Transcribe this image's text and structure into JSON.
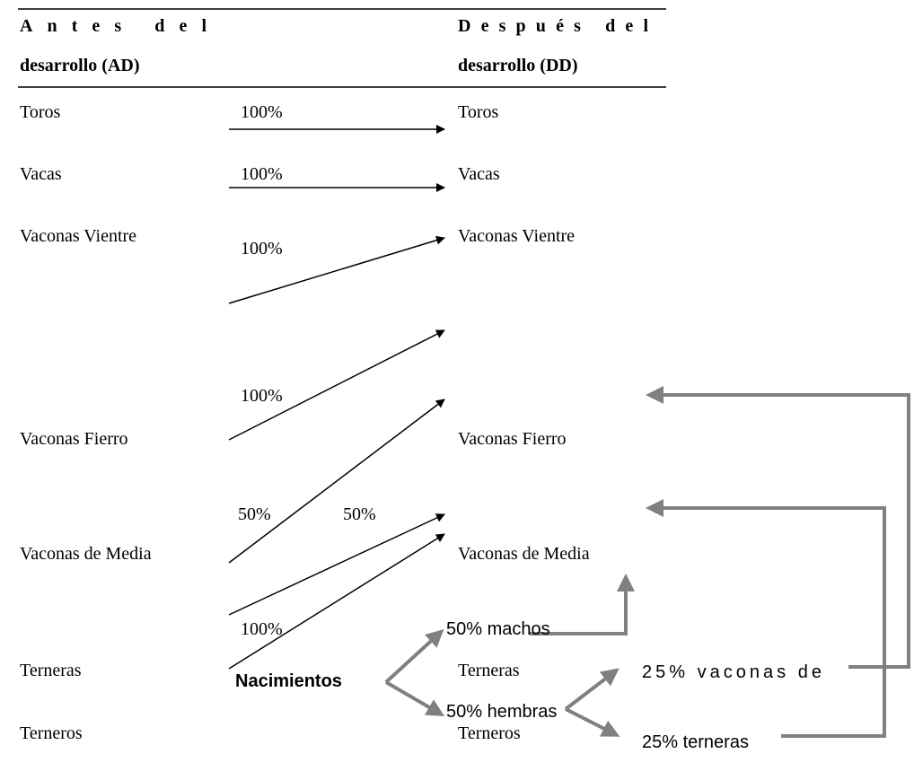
{
  "header": {
    "before_line1": "Antes del",
    "before_line2": "desarrollo (AD)",
    "after_line1": "Después del",
    "after_line2": "desarrollo (DD)"
  },
  "left_labels": [
    "Toros",
    "Vacas",
    "Vaconas Vientre",
    "Vaconas Fierro",
    "Vaconas de Media",
    "Terneras",
    "Terneros"
  ],
  "right_labels": [
    "Toros",
    "Vacas",
    "Vaconas Vientre",
    "Vaconas Fierro",
    "Vaconas de Media",
    "Terneras",
    "Terneros"
  ],
  "percentages": [
    "100%",
    "100%",
    "100%",
    "100%",
    "50%",
    "50%",
    "100%"
  ],
  "births": {
    "label": "Nacimientos",
    "males": "50% machos",
    "females": "50% hembras",
    "heifers_female": "25% vaconas de",
    "calves_female": "25% terneras"
  }
}
